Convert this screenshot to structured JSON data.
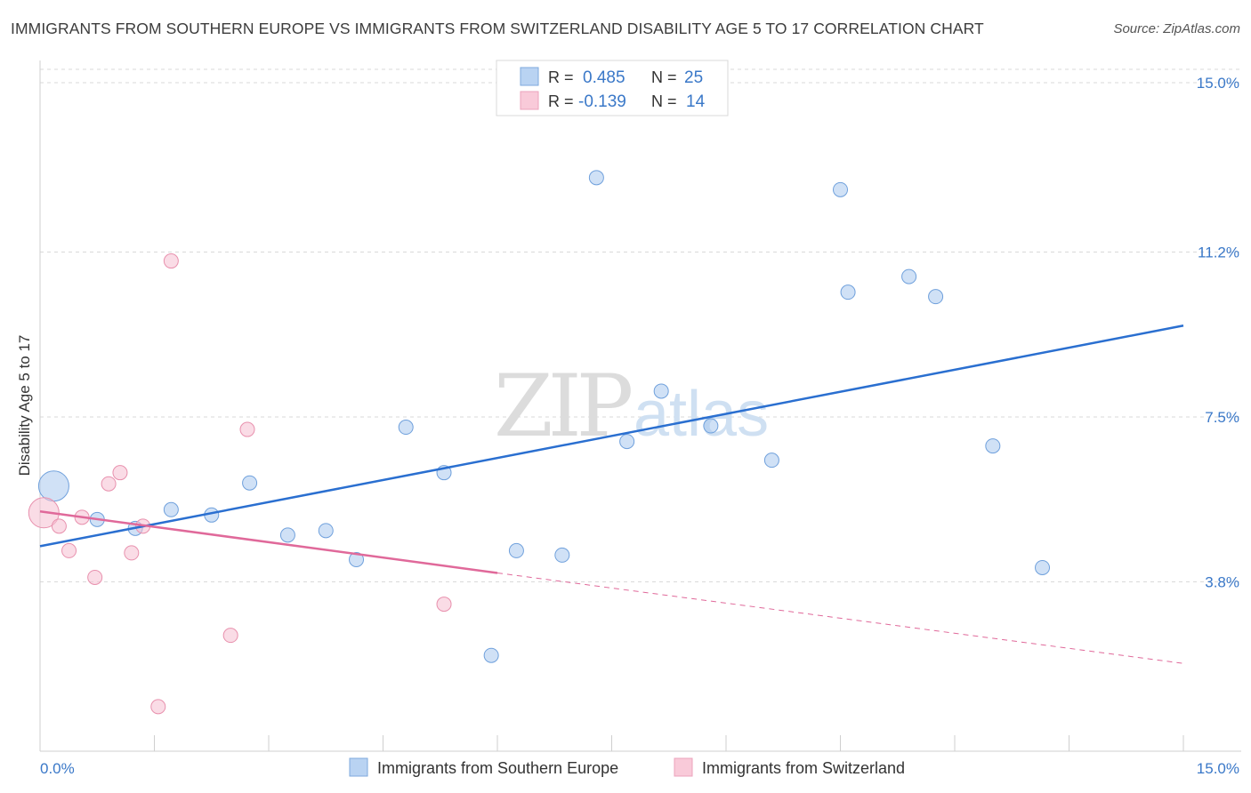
{
  "title": "IMMIGRANTS FROM SOUTHERN EUROPE VS IMMIGRANTS FROM SWITZERLAND DISABILITY AGE 5 TO 17 CORRELATION CHART",
  "source": "Source: ZipAtlas.com",
  "watermark": {
    "zip": "ZIP",
    "atlas": "atlas"
  },
  "chart_data": {
    "type": "scatter",
    "xlabel": "",
    "ylabel": "Disability Age 5 to 17",
    "xlim": [
      0,
      15
    ],
    "ylim": [
      0,
      15.3
    ],
    "x_tick_labels": [
      "0.0%",
      "15.0%"
    ],
    "y_ticks": [
      3.8,
      7.5,
      11.2,
      15.0
    ],
    "y_tick_labels": [
      "3.8%",
      "7.5%",
      "11.2%",
      "15.0%"
    ],
    "grid": true,
    "legend": {
      "placement": "top-center",
      "rows": [
        {
          "r_label": "R =",
          "r_value": "0.485",
          "n_label": "N =",
          "n_value": "25"
        },
        {
          "r_label": "R =",
          "r_value": "-0.139",
          "n_label": "N =",
          "n_value": "14"
        }
      ]
    },
    "series": [
      {
        "name": "Immigrants from Southern Europe",
        "color": "#a9c8ee",
        "stroke": "#6fa0dc",
        "trend_color": "#2a6fd0",
        "trend": {
          "x0": 0.0,
          "y0": 4.6,
          "x1": 15.0,
          "y1": 9.55
        },
        "points": [
          {
            "x": 0.18,
            "y": 5.95,
            "big": true
          },
          {
            "x": 0.75,
            "y": 5.2
          },
          {
            "x": 1.25,
            "y": 5.0
          },
          {
            "x": 1.72,
            "y": 5.42
          },
          {
            "x": 2.25,
            "y": 5.3
          },
          {
            "x": 2.75,
            "y": 6.02
          },
          {
            "x": 3.25,
            "y": 4.85
          },
          {
            "x": 3.75,
            "y": 4.95
          },
          {
            "x": 4.15,
            "y": 4.3
          },
          {
            "x": 4.8,
            "y": 7.27
          },
          {
            "x": 5.3,
            "y": 6.25
          },
          {
            "x": 5.92,
            "y": 2.15
          },
          {
            "x": 6.25,
            "y": 4.5
          },
          {
            "x": 6.85,
            "y": 4.4
          },
          {
            "x": 7.3,
            "y": 12.87
          },
          {
            "x": 7.7,
            "y": 6.95
          },
          {
            "x": 8.15,
            "y": 8.08
          },
          {
            "x": 8.8,
            "y": 7.3
          },
          {
            "x": 9.6,
            "y": 6.53
          },
          {
            "x": 10.5,
            "y": 12.6
          },
          {
            "x": 10.6,
            "y": 10.3
          },
          {
            "x": 11.4,
            "y": 10.65
          },
          {
            "x": 11.75,
            "y": 10.2
          },
          {
            "x": 12.5,
            "y": 6.85
          },
          {
            "x": 13.15,
            "y": 4.12
          }
        ]
      },
      {
        "name": "Immigrants from Switzerland",
        "color": "#f6c0d2",
        "stroke": "#e890ad",
        "trend_color": "#e0699a",
        "trend": {
          "x0": 0.0,
          "y0": 5.38,
          "x1": 6.0,
          "y1": 4.0
        },
        "trend_dashed": {
          "x0": 6.0,
          "y0": 4.0,
          "x1": 15.0,
          "y1": 1.97
        },
        "points": [
          {
            "x": 0.05,
            "y": 5.35,
            "big": true
          },
          {
            "x": 0.25,
            "y": 5.05
          },
          {
            "x": 0.38,
            "y": 4.5
          },
          {
            "x": 0.55,
            "y": 5.25
          },
          {
            "x": 0.72,
            "y": 3.9
          },
          {
            "x": 0.9,
            "y": 6.0
          },
          {
            "x": 1.05,
            "y": 6.25
          },
          {
            "x": 1.2,
            "y": 4.45
          },
          {
            "x": 1.35,
            "y": 5.05
          },
          {
            "x": 1.55,
            "y": 1.0
          },
          {
            "x": 1.72,
            "y": 11.0
          },
          {
            "x": 2.5,
            "y": 2.6
          },
          {
            "x": 2.72,
            "y": 7.22
          },
          {
            "x": 5.3,
            "y": 3.3
          }
        ]
      }
    ]
  }
}
